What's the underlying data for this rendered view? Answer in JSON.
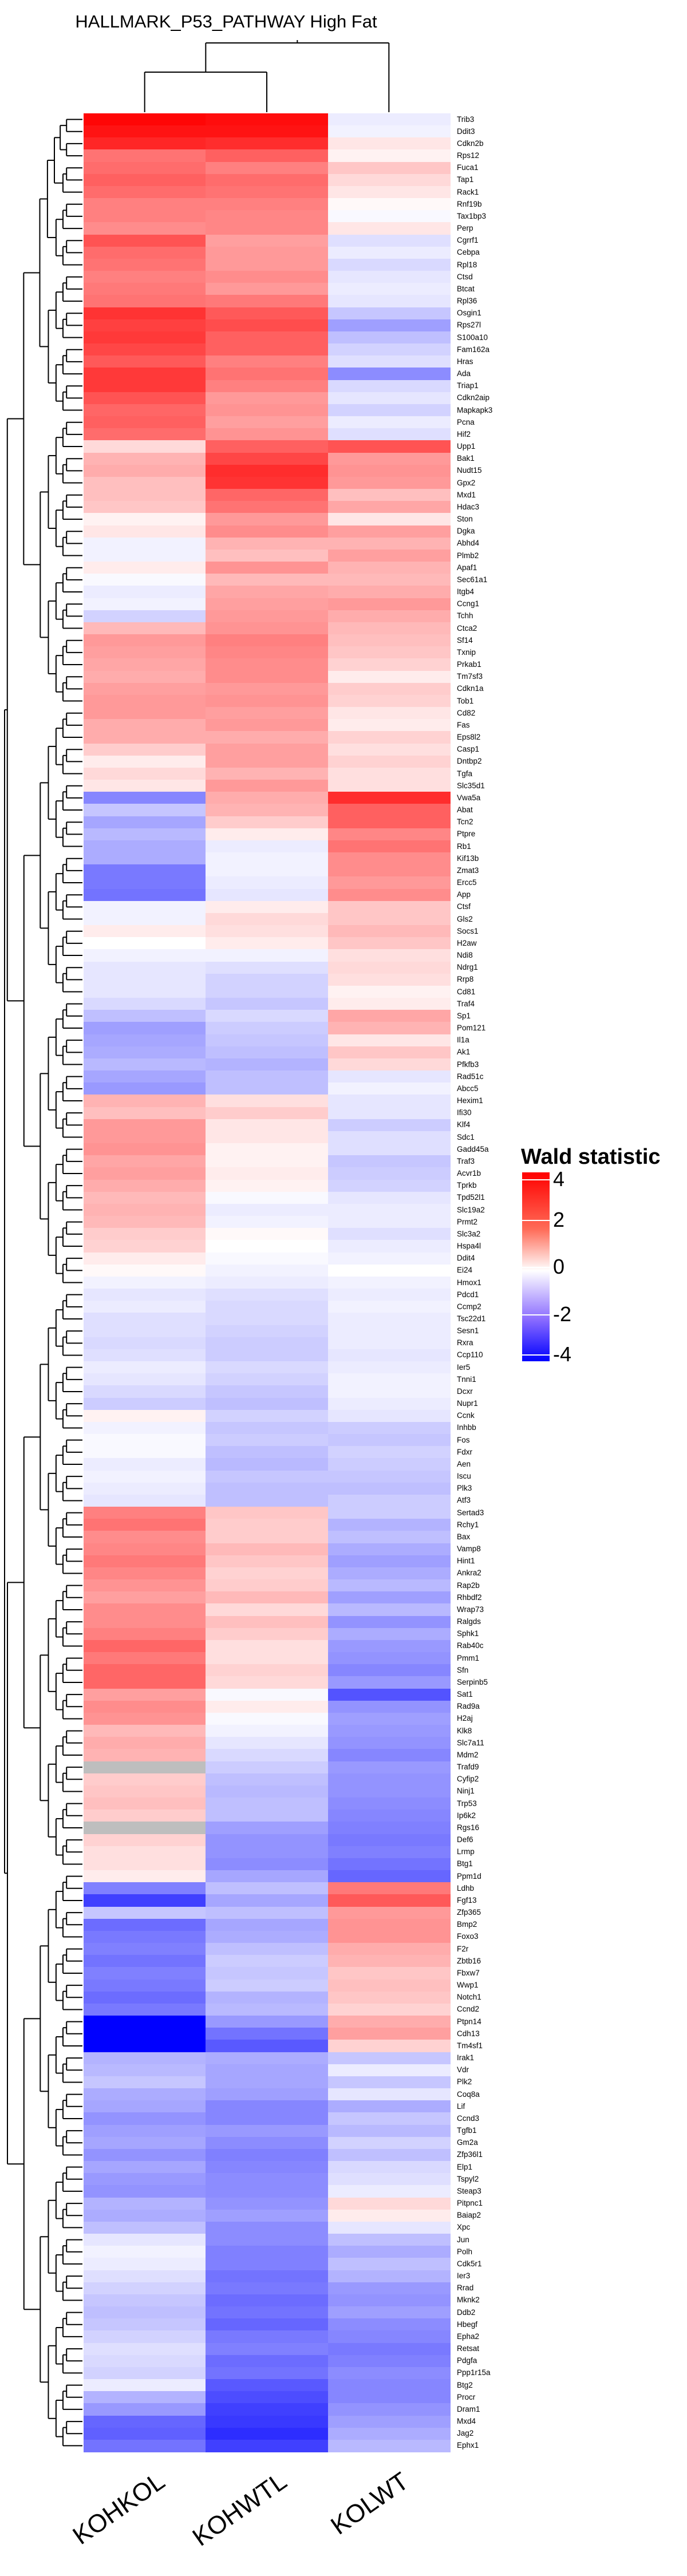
{
  "chart_data": {
    "type": "heatmap",
    "title": "HALLMARK_P53_PATHWAY High Fat",
    "columns": [
      "KOHKOL",
      "KOHWTL",
      "KOLWT"
    ],
    "color_scale": {
      "min": -4,
      "max": 4,
      "low": "#0000ff",
      "mid": "#ffffff",
      "high": "#ff0000",
      "na": "#bebebe"
    },
    "legend": {
      "title": "Wald statistic",
      "ticks": [
        4,
        2,
        0,
        -2,
        -4
      ],
      "placement": "right"
    },
    "rows": [
      [
        "Trib3",
        3.9,
        3.8,
        -0.3
      ],
      [
        "Ddit3",
        3.7,
        3.7,
        -0.2
      ],
      [
        "Cdkn2b",
        3.4,
        3.3,
        0.4
      ],
      [
        "Rps12",
        2.2,
        2.5,
        0.2
      ],
      [
        "Fuca1",
        2.3,
        2.0,
        0.9
      ],
      [
        "Tap1",
        2.5,
        2.3,
        0.6
      ],
      [
        "Rack1",
        2.3,
        2.2,
        0.4
      ],
      [
        "Rnf19b",
        2.0,
        2.0,
        0.1
      ],
      [
        "Tax1bp3",
        2.0,
        1.9,
        -0.1
      ],
      [
        "Perp",
        1.8,
        1.9,
        0.4
      ],
      [
        "Cgrrf1",
        2.7,
        1.5,
        -0.5
      ],
      [
        "Cebpa",
        2.3,
        1.6,
        -0.3
      ],
      [
        "Rpl18",
        2.2,
        1.6,
        -0.6
      ],
      [
        "Ctsd",
        2.0,
        1.8,
        -0.4
      ],
      [
        "Btcat",
        2.1,
        1.6,
        -0.3
      ],
      [
        "Rpl36",
        2.2,
        2.1,
        -0.4
      ],
      [
        "Osgin1",
        3.2,
        2.6,
        -0.9
      ],
      [
        "Rps27l",
        3.0,
        2.8,
        -1.5
      ],
      [
        "S100a10",
        3.1,
        2.5,
        -1.0
      ],
      [
        "Fam162a",
        2.9,
        2.5,
        -0.7
      ],
      [
        "Hras",
        2.6,
        2.0,
        -0.5
      ],
      [
        "Ada",
        3.1,
        2.2,
        -1.8
      ],
      [
        "Triap1",
        3.1,
        2.0,
        -0.6
      ],
      [
        "Cdkn2aip",
        2.7,
        1.6,
        -0.4
      ],
      [
        "Mapkapk3",
        2.4,
        1.7,
        -0.7
      ],
      [
        "Pcna",
        2.5,
        1.5,
        -0.3
      ],
      [
        "Hif2",
        2.3,
        1.7,
        -0.5
      ],
      [
        "Upp1",
        0.6,
        2.5,
        2.7
      ],
      [
        "Bak1",
        1.2,
        2.9,
        1.6
      ],
      [
        "Nudt15",
        1.3,
        3.3,
        1.7
      ],
      [
        "Gpx2",
        1.0,
        3.2,
        1.6
      ],
      [
        "Mxd1",
        1.0,
        2.4,
        1.0
      ],
      [
        "Hdac3",
        0.9,
        2.2,
        1.4
      ],
      [
        "Ston",
        0.2,
        1.6,
        0.4
      ],
      [
        "Dgka",
        0.4,
        1.8,
        1.5
      ],
      [
        "Abhd4",
        -0.2,
        1.2,
        1.2
      ],
      [
        "Plmb2",
        -0.2,
        1.0,
        1.5
      ],
      [
        "Apaf1",
        0.3,
        1.7,
        1.2
      ],
      [
        "Sec61a1",
        -0.1,
        1.1,
        1.1
      ],
      [
        "Itgb4",
        -0.3,
        1.4,
        1.3
      ],
      [
        "Ccng1",
        -0.2,
        1.5,
        1.6
      ],
      [
        "Tchh",
        -0.7,
        1.6,
        1.3
      ],
      [
        "Ctca2",
        1.1,
        1.7,
        1.1
      ],
      [
        "Sf14",
        1.6,
        2.0,
        1.0
      ],
      [
        "Txnip",
        1.5,
        1.9,
        0.9
      ],
      [
        "Prkab1",
        1.4,
        1.8,
        0.7
      ],
      [
        "Tm7sf3",
        1.3,
        1.8,
        0.3
      ],
      [
        "Cdkn1a",
        1.5,
        1.6,
        0.8
      ],
      [
        "Tob1",
        1.6,
        1.7,
        0.7
      ],
      [
        "Cd82",
        1.6,
        1.5,
        0.4
      ],
      [
        "Fas",
        1.3,
        1.6,
        0.3
      ],
      [
        "Eps8l2",
        1.3,
        1.3,
        0.7
      ],
      [
        "Casp1",
        0.8,
        1.5,
        0.5
      ],
      [
        "Dntbp2",
        0.3,
        1.5,
        0.7
      ],
      [
        "Tgfa",
        0.6,
        1.2,
        0.5
      ],
      [
        "Slc35d1",
        0.4,
        1.6,
        0.5
      ],
      [
        "Vwa5a",
        -1.9,
        1.3,
        3.3
      ],
      [
        "Abat",
        -0.9,
        1.2,
        2.5
      ],
      [
        "Tcn2",
        -1.4,
        0.8,
        2.5
      ],
      [
        "Ptpre",
        -1.1,
        0.3,
        1.9
      ],
      [
        "Rb1",
        -1.3,
        -0.3,
        2.2
      ],
      [
        "Kif13b",
        -1.3,
        -0.2,
        1.8
      ],
      [
        "Zmat3",
        -2.1,
        -0.2,
        1.8
      ],
      [
        "Ercc5",
        -2.1,
        -0.3,
        1.6
      ],
      [
        "App",
        -2.2,
        -0.4,
        1.8
      ],
      [
        "Ctsf",
        -0.2,
        0.3,
        0.9
      ],
      [
        "Gls2",
        -0.2,
        0.6,
        0.9
      ],
      [
        "Socs1",
        0.3,
        0.5,
        1.1
      ],
      [
        "H2aw",
        0.0,
        0.3,
        0.9
      ],
      [
        "Ndi8",
        -0.2,
        -0.2,
        0.5
      ],
      [
        "Ndrg1",
        -0.4,
        -0.5,
        0.6
      ],
      [
        "Rrp8",
        -0.4,
        -0.7,
        0.5
      ],
      [
        "Cd81",
        -0.4,
        -0.7,
        0.2
      ],
      [
        "Traf4",
        -0.6,
        -0.9,
        0.3
      ],
      [
        "Sp1",
        -1.0,
        -0.6,
        1.4
      ],
      [
        "Pom121",
        -1.5,
        -0.8,
        1.2
      ],
      [
        "Il1a",
        -1.4,
        -0.9,
        0.4
      ],
      [
        "Ak1",
        -1.3,
        -1.0,
        0.9
      ],
      [
        "Pfkfb3",
        -1.1,
        -1.2,
        0.6
      ],
      [
        "Rad51c",
        -1.4,
        -1.0,
        -0.4
      ],
      [
        "Abcc5",
        -1.6,
        -1.0,
        -0.2
      ],
      [
        "Hexim1",
        1.2,
        0.5,
        -0.4
      ],
      [
        "Ifi30",
        1.0,
        0.8,
        -0.4
      ],
      [
        "Klf4",
        1.6,
        0.4,
        -0.8
      ],
      [
        "Sdc1",
        1.6,
        0.4,
        -0.5
      ],
      [
        "Gadd45a",
        1.7,
        0.2,
        -0.5
      ],
      [
        "Traf3",
        1.4,
        0.2,
        -0.9
      ],
      [
        "Acvr1b",
        1.5,
        0.3,
        -0.8
      ],
      [
        "Tprkb",
        1.3,
        0.2,
        -0.7
      ],
      [
        "Tpd52l1",
        1.1,
        -0.1,
        -0.4
      ],
      [
        "Slc19a2",
        1.2,
        -0.3,
        -0.3
      ],
      [
        "Prmt2",
        1.1,
        -0.2,
        -0.3
      ],
      [
        "Slc3a2",
        0.8,
        0.1,
        -0.5
      ],
      [
        "Hspa4l",
        0.7,
        0.0,
        -0.3
      ],
      [
        "Ddit4",
        0.3,
        -0.1,
        -0.2
      ],
      [
        "Ei24",
        0.1,
        -0.2,
        0.0
      ],
      [
        "Hmox1",
        -0.2,
        -0.3,
        -0.2
      ],
      [
        "Pdcd1",
        -0.4,
        -0.5,
        -0.3
      ],
      [
        "Ccmp2",
        -0.3,
        -0.6,
        -0.2
      ],
      [
        "Tsc22d1",
        -0.5,
        -0.6,
        -0.3
      ],
      [
        "Sesn1",
        -0.5,
        -0.7,
        -0.3
      ],
      [
        "Rxra",
        -0.6,
        -0.8,
        -0.3
      ],
      [
        "Ccp110",
        -0.5,
        -0.8,
        -0.4
      ],
      [
        "Ier5",
        -0.3,
        -0.6,
        -0.3
      ],
      [
        "Tnni1",
        -0.4,
        -0.7,
        -0.2
      ],
      [
        "Dcxr",
        -0.6,
        -0.9,
        -0.2
      ],
      [
        "Nupr1",
        -0.8,
        -1.0,
        -0.3
      ],
      [
        "Ccnk",
        0.2,
        -0.7,
        -0.4
      ],
      [
        "Inhbb",
        -0.2,
        -0.9,
        -0.8
      ],
      [
        "Fos",
        -0.1,
        -0.8,
        -0.9
      ],
      [
        "Fdxr",
        -0.1,
        -1.0,
        -0.7
      ],
      [
        "Aen",
        -0.3,
        -1.1,
        -0.8
      ],
      [
        "Iscu",
        -0.2,
        -0.9,
        -0.9
      ],
      [
        "Plk3",
        -0.3,
        -1.0,
        -1.0
      ],
      [
        "Atf3",
        -0.4,
        -1.0,
        -0.8
      ],
      [
        "Sertad3",
        2.0,
        0.9,
        -0.8
      ],
      [
        "Rchy1",
        2.2,
        0.8,
        -1.2
      ],
      [
        "Bax",
        1.8,
        0.8,
        -1.0
      ],
      [
        "Vamp8",
        1.9,
        1.1,
        -1.3
      ],
      [
        "Hint1",
        2.1,
        0.9,
        -1.5
      ],
      [
        "Ankra2",
        1.9,
        0.7,
        -1.3
      ],
      [
        "Rap2b",
        1.7,
        0.8,
        -1.1
      ],
      [
        "Rhbdf2",
        1.5,
        1.1,
        -1.5
      ],
      [
        "Wrap73",
        1.8,
        0.6,
        -1.1
      ],
      [
        "Ralgds",
        1.8,
        1.0,
        -1.7
      ],
      [
        "Sphk1",
        2.0,
        0.8,
        -1.3
      ],
      [
        "Rab40c",
        2.4,
        0.5,
        -1.6
      ],
      [
        "Pmm1",
        2.1,
        0.5,
        -1.7
      ],
      [
        "Sfn",
        2.4,
        0.7,
        -1.9
      ],
      [
        "Serpinb5",
        2.4,
        0.6,
        -1.6
      ],
      [
        "Sat1",
        1.5,
        -0.1,
        -2.7
      ],
      [
        "Rad9a",
        1.8,
        0.3,
        -1.7
      ],
      [
        "H2aj",
        1.7,
        -0.1,
        -1.5
      ],
      [
        "Klk8",
        1.1,
        -0.2,
        -1.6
      ],
      [
        "Slc7a11",
        1.3,
        -0.4,
        -1.7
      ],
      [
        "Mdm2",
        1.2,
        -0.6,
        -1.9
      ],
      [
        "Trafd9",
        null,
        -0.8,
        -1.6
      ],
      [
        "Cyfip2",
        0.8,
        -1.0,
        -1.7
      ],
      [
        "Ninj1",
        0.9,
        -1.1,
        -1.7
      ],
      [
        "Trp53",
        1.0,
        -1.0,
        -1.8
      ],
      [
        "Ip6k2",
        0.8,
        -1.0,
        -1.9
      ],
      [
        "Rgs16",
        null,
        -1.5,
        -2.0
      ],
      [
        "Def6",
        0.7,
        -1.7,
        -2.1
      ],
      [
        "Lrmp",
        0.5,
        -1.7,
        -2.0
      ],
      [
        "Btg1",
        0.5,
        -1.8,
        -2.2
      ],
      [
        "Ppm1d",
        0.3,
        -1.4,
        -2.4
      ],
      [
        "Ldhb",
        -2.0,
        -1.0,
        2.1
      ],
      [
        "Fgf13",
        -3.0,
        -1.4,
        2.6
      ],
      [
        "Zfp365",
        -0.9,
        -1.0,
        1.6
      ],
      [
        "Bmp2",
        -2.3,
        -1.4,
        1.7
      ],
      [
        "Foxo3",
        -2.1,
        -1.3,
        1.7
      ],
      [
        "F2r",
        -2.0,
        -1.0,
        1.3
      ],
      [
        "Zbtb16",
        -2.2,
        -0.8,
        1.2
      ],
      [
        "Fbxw7",
        -2.0,
        -0.9,
        0.9
      ],
      [
        "Wwp1",
        -2.1,
        -0.8,
        1.0
      ],
      [
        "Notch1",
        -2.3,
        -1.2,
        0.9
      ],
      [
        "Ccnd2",
        -2.1,
        -1.1,
        0.7
      ],
      [
        "Ptpn14",
        -4.0,
        -1.6,
        1.3
      ],
      [
        "Cdh13",
        -4.0,
        -2.2,
        1.5
      ],
      [
        "Tm4sf1",
        -4.0,
        -2.6,
        0.7
      ],
      [
        "Irak1",
        -1.2,
        -1.3,
        -0.9
      ],
      [
        "Vdr",
        -1.1,
        -1.4,
        -0.3
      ],
      [
        "Plk2",
        -0.9,
        -1.4,
        -0.9
      ],
      [
        "Coq8a",
        -1.3,
        -1.5,
        -0.4
      ],
      [
        "Lif",
        -1.4,
        -1.9,
        -1.3
      ],
      [
        "Ccnd3",
        -1.7,
        -1.9,
        -0.9
      ],
      [
        "Tgfb1",
        -1.5,
        -1.6,
        -1.1
      ],
      [
        "Gm2a",
        -1.4,
        -1.8,
        -0.7
      ],
      [
        "Zfp36l1",
        -1.7,
        -2.0,
        -1.0
      ],
      [
        "Elp1",
        -1.4,
        -1.9,
        -0.6
      ],
      [
        "Tspyl2",
        -1.6,
        -1.8,
        -0.5
      ],
      [
        "Steap3",
        -1.7,
        -1.8,
        -0.3
      ],
      [
        "Pitpnc1",
        -1.2,
        -1.7,
        0.6
      ],
      [
        "Baiap2",
        -1.3,
        -1.5,
        0.3
      ],
      [
        "Xpc",
        -1.0,
        -1.8,
        -0.4
      ],
      [
        "Jun",
        -0.4,
        -1.8,
        -1.0
      ],
      [
        "Polh",
        -0.2,
        -2.0,
        -1.3
      ],
      [
        "Cdk5r1",
        -0.3,
        -2.0,
        -1.0
      ],
      [
        "Ier3",
        -0.5,
        -2.2,
        -1.2
      ],
      [
        "Rrad",
        -0.7,
        -2.1,
        -1.6
      ],
      [
        "Mknk2",
        -0.9,
        -2.3,
        -1.7
      ],
      [
        "Ddb2",
        -1.0,
        -2.2,
        -1.5
      ],
      [
        "Hbegf",
        -0.9,
        -2.4,
        -1.8
      ],
      [
        "Epha2",
        -0.7,
        -2.1,
        -1.9
      ],
      [
        "Retsat",
        -0.5,
        -2.0,
        -2.1
      ],
      [
        "Pdgfa",
        -0.6,
        -2.3,
        -2.0
      ],
      [
        "Ppp1r15a",
        -0.7,
        -2.2,
        -1.8
      ],
      [
        "Btg2",
        -0.3,
        -2.6,
        -1.9
      ],
      [
        "Procr",
        -1.2,
        -2.8,
        -1.9
      ],
      [
        "Dram1",
        -1.6,
        -3.0,
        -1.7
      ],
      [
        "Mxd4",
        -2.4,
        -3.1,
        -1.5
      ],
      [
        "Jag2",
        -2.5,
        -3.3,
        -1.3
      ],
      [
        "Ephx1",
        -2.2,
        -3.0,
        -1.1
      ]
    ]
  }
}
